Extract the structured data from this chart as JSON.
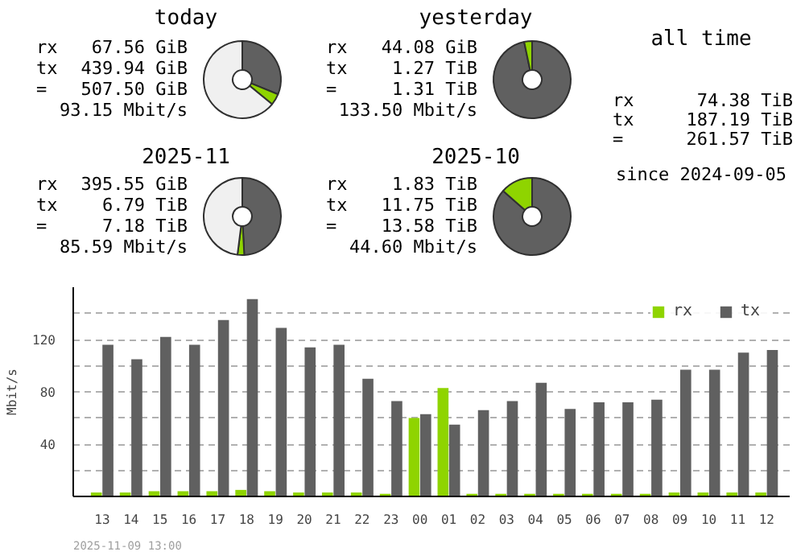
{
  "chart_data": [
    {
      "type": "donut",
      "title": "today",
      "categories": [
        null,
        null,
        null
      ],
      "values": [
        31.2,
        4.8,
        64.0
      ],
      "colors": [
        "#606060",
        "#8fd400",
        "#f0f0f0"
      ],
      "annotations": [
        "rx 67.56 GiB",
        "tx 439.94 GiB",
        "= 507.50 GiB",
        "93.15 Mbit/s"
      ]
    },
    {
      "type": "donut",
      "title": "2025-11",
      "categories": [
        null,
        null,
        null
      ],
      "values": [
        49.2,
        2.8,
        48.0
      ],
      "colors": [
        "#606060",
        "#8fd400",
        "#f0f0f0"
      ],
      "annotations": [
        "rx 395.55 GiB",
        "tx 6.79 TiB",
        "= 7.18 TiB",
        "85.59 Mbit/s"
      ]
    },
    {
      "type": "donut",
      "title": "yesterday",
      "categories": [
        null,
        null
      ],
      "values": [
        96.7,
        3.3
      ],
      "colors": [
        "#606060",
        "#8fd400"
      ],
      "annotations": [
        "rx 44.08 GiB",
        "tx 1.27 TiB",
        "= 1.31 TiB",
        "133.50 Mbit/s"
      ]
    },
    {
      "type": "donut",
      "title": "2025-10",
      "categories": [
        null,
        null
      ],
      "values": [
        86.5,
        13.5
      ],
      "colors": [
        "#606060",
        "#8fd400"
      ],
      "annotations": [
        "rx 1.83 TiB",
        "tx 11.75 TiB",
        "= 13.58 TiB",
        "44.60 Mbit/s"
      ]
    },
    {
      "type": "other",
      "title": "all time",
      "annotations": [
        "rx 74.38 TiB",
        "tx 187.19 TiB",
        "= 261.57 TiB",
        "since 2024-09-05"
      ]
    },
    {
      "type": "bar",
      "ylabel": "Mbit/s",
      "categories": [
        "13",
        "14",
        "15",
        "16",
        "17",
        "18",
        "19",
        "20",
        "21",
        "22",
        "23",
        "00",
        "01",
        "02",
        "03",
        "04",
        "05",
        "06",
        "07",
        "08",
        "09",
        "10",
        "11",
        "12"
      ],
      "series": [
        {
          "name": "rx",
          "color": "#8fd400",
          "values": [
            3,
            3,
            4,
            4,
            4,
            5,
            4,
            3,
            3,
            3,
            2,
            60,
            83,
            2,
            2,
            2,
            2,
            2,
            2,
            2,
            3,
            3,
            3,
            3
          ]
        },
        {
          "name": "tx",
          "color": "#606060",
          "values": [
            116,
            105,
            122,
            116,
            135,
            151,
            129,
            114,
            116,
            90,
            73,
            63,
            55,
            66,
            73,
            87,
            67,
            72,
            72,
            74,
            97,
            97,
            110,
            112
          ]
        }
      ],
      "ylim": [
        0,
        160
      ],
      "yticks": [
        {
          "value": 20,
          "label": null
        },
        40,
        {
          "value": 60,
          "label": null
        },
        80,
        {
          "value": 100,
          "label": null
        },
        120,
        {
          "value": 140,
          "label": null
        }
      ],
      "grid": "y",
      "legend": "top right",
      "annotations": [
        "2025-11-09 13:00"
      ]
    }
  ]
}
